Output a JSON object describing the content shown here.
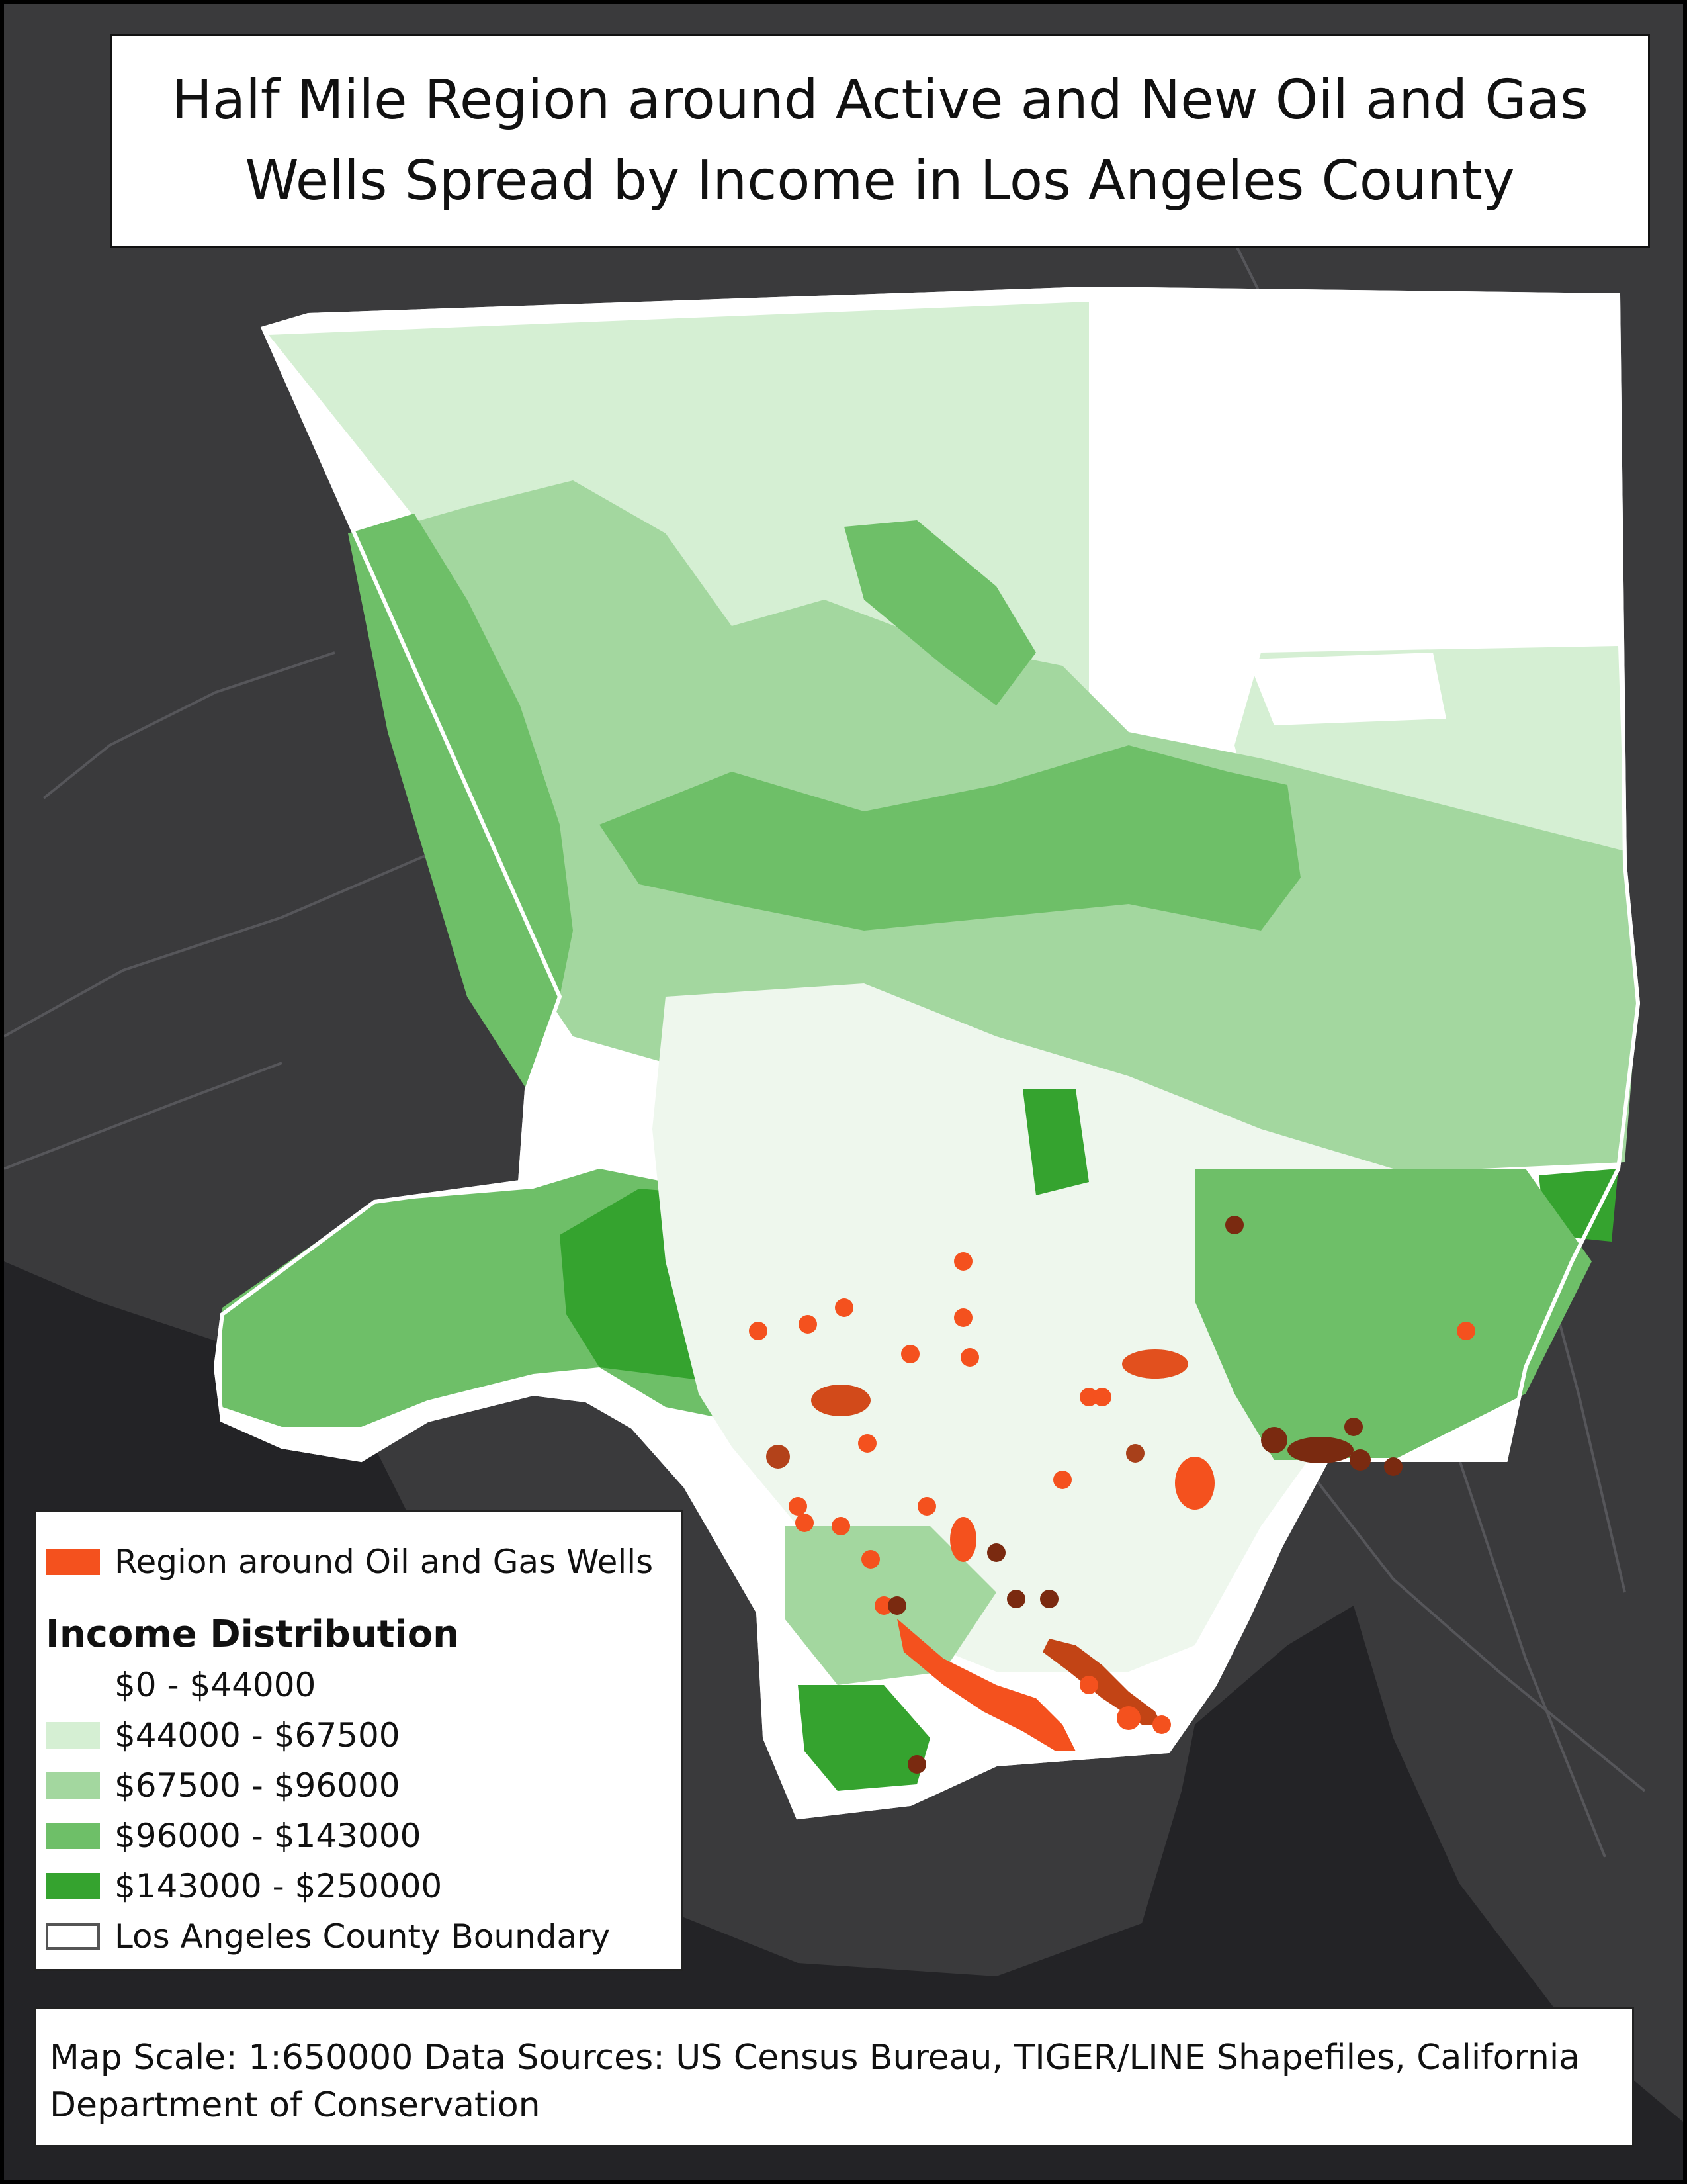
{
  "title": "Half Mile Region around Active and New Oil and Gas Wells Spread by Income in Los Angeles County",
  "colors": {
    "basemap_land": "#3a3a3c",
    "basemap_ocean": "#232326",
    "basemap_roads": "#56565a",
    "county_outline": "#ffffff",
    "wells_region": "#f4511e",
    "wells_overlap": "#7a2a10",
    "income_classes": [
      "#ffffff",
      "#d5efd3",
      "#a3d79f",
      "#6ebf68",
      "#35a32f"
    ]
  },
  "legend": {
    "wells_label": "Region around Oil and Gas Wells",
    "heading": "Income Distribution",
    "classes": [
      {
        "label": "$0 - $44000",
        "color": "#ffffff"
      },
      {
        "label": "$44000 - $67500",
        "color": "#d5efd3"
      },
      {
        "label": "$67500 - $96000",
        "color": "#a3d79f"
      },
      {
        "label": "$96000 - $143000",
        "color": "#6ebf68"
      },
      {
        "label": "$143000 - $250000",
        "color": "#35a32f"
      }
    ],
    "boundary_label": "Los Angeles County Boundary"
  },
  "footer": {
    "text": "Map Scale: 1:650000 Data Sources: US Census Bureau, TIGER/LINE Shapefiles, California Department of Conservation"
  }
}
